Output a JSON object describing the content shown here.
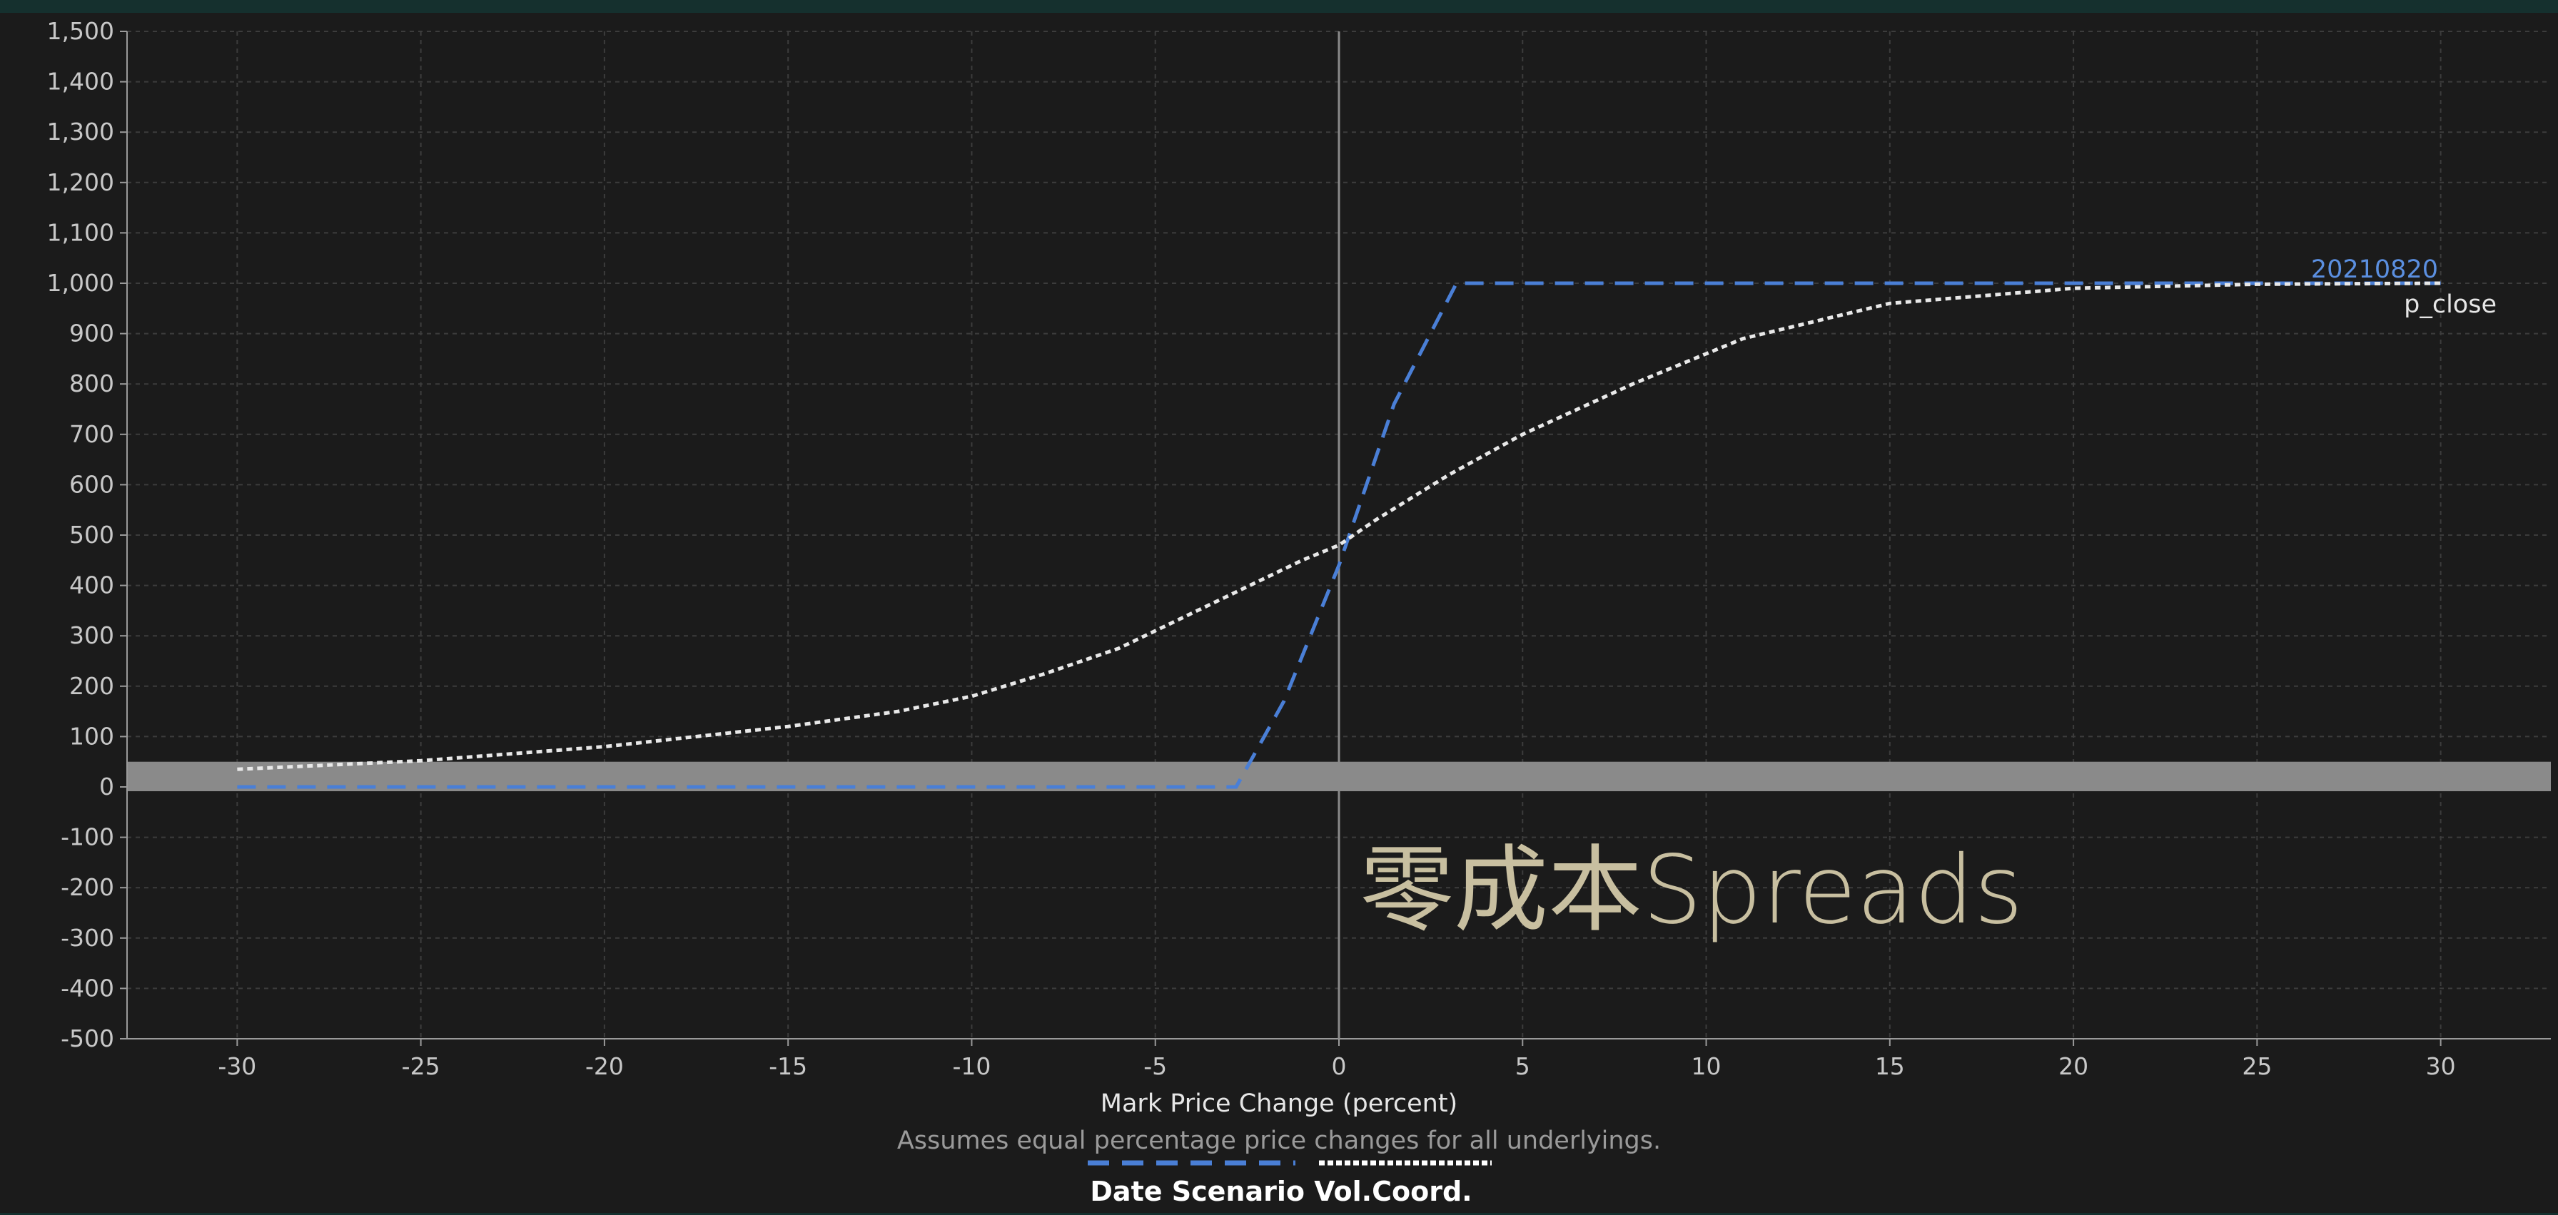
{
  "chart_data": {
    "type": "line",
    "title": "",
    "watermark": "零成本Spreads",
    "xlabel": "Mark Price Change (percent)",
    "x_note": "Assumes equal percentage price changes for all underlyings.",
    "ylabel": "",
    "xlim": [
      -33,
      33
    ],
    "ylim": [
      -500,
      1500
    ],
    "x_ticks": [
      -30,
      -25,
      -20,
      -15,
      -10,
      -5,
      0,
      5,
      10,
      15,
      20,
      25,
      30
    ],
    "x_tick_labels": [
      "-30",
      "-25",
      "-20",
      "-15",
      "-10",
      "-5",
      "0",
      "5",
      "10",
      "15",
      "20",
      "25",
      "30"
    ],
    "y_ticks": [
      -500,
      -400,
      -300,
      -200,
      -100,
      0,
      100,
      200,
      300,
      400,
      500,
      600,
      700,
      800,
      900,
      1000,
      1100,
      1200,
      1300,
      1400,
      1500
    ],
    "y_tick_labels": [
      "-500",
      "-400",
      "-300",
      "-200",
      "-100",
      "0",
      "100",
      "200",
      "300",
      "400",
      "500",
      "600",
      "700",
      "800",
      "900",
      "1,000",
      "1,100",
      "1,200",
      "1,300",
      "1,400",
      "1,500"
    ],
    "grid": true,
    "zero_band": [
      0,
      50
    ],
    "series": [
      {
        "name": "20210820",
        "color": "#4a7fd6",
        "style": "dashed",
        "x": [
          -30,
          -2.8,
          -1.5,
          0,
          1.5,
          3.2,
          30
        ],
        "y": [
          0,
          0,
          170,
          440,
          760,
          1000,
          1000
        ]
      },
      {
        "name": "p_close",
        "color": "#e8e8e8",
        "style": "dotted",
        "x": [
          -30,
          -25,
          -20,
          -15,
          -12,
          -10,
          -8,
          -6,
          -4,
          -2,
          -1,
          0,
          1,
          3,
          5,
          8,
          11,
          15,
          20,
          25,
          30
        ],
        "y": [
          35,
          52,
          80,
          120,
          150,
          180,
          225,
          275,
          345,
          415,
          450,
          480,
          530,
          620,
          700,
          800,
          890,
          960,
          990,
          998,
          1000
        ]
      }
    ],
    "legend": {
      "placement": "bottom-center",
      "label": "Date Scenario Vol.Coord."
    }
  }
}
